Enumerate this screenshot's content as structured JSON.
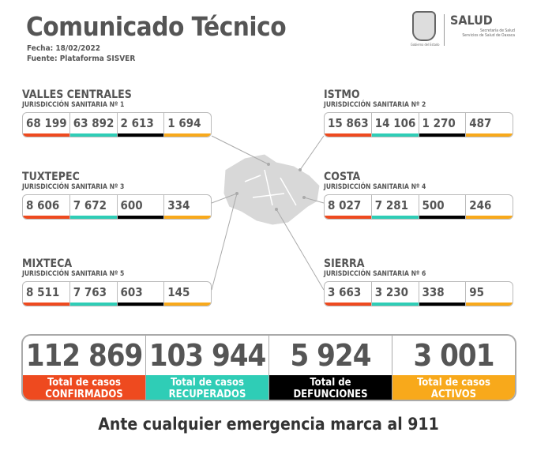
{
  "header": {
    "title": "Comunicado Técnico",
    "fecha": "Fecha: 18/02/2022",
    "fuente": "Fuente: Plataforma SISVER"
  },
  "logo": {
    "salud": "SALUD",
    "sub1": "Secretaría de Salud",
    "sub2": "Servicios de Salud de Oaxaca",
    "gob": "Gobierno del Estado"
  },
  "colors": {
    "confirmados": "#ee4a1f",
    "recuperados": "#2fcdb6",
    "defunciones": "#000000",
    "activos": "#f8a91b"
  },
  "regions": [
    {
      "name": "VALLES CENTRALES",
      "sub": "JURISDICCIÓN SANITARIA Nº 1",
      "values": [
        "68 199",
        "63 892",
        "2 613",
        "1 694"
      ]
    },
    {
      "name": "ISTMO",
      "sub": "JURISDICCIÓN SANITARIA Nº 2",
      "values": [
        "15 863",
        "14 106",
        "1 270",
        "487"
      ]
    },
    {
      "name": "TUXTEPEC",
      "sub": "JURISDICCIÓN SANITARIA Nº 3",
      "values": [
        "8 606",
        "7 672",
        "600",
        "334"
      ]
    },
    {
      "name": "COSTA",
      "sub": "JURISDICCIÓN SANITARIA Nº 4",
      "values": [
        "8 027",
        "7 281",
        "500",
        "246"
      ]
    },
    {
      "name": "MIXTECA",
      "sub": "JURISDICCIÓN SANITARIA Nº 5",
      "values": [
        "8 511",
        "7 763",
        "603",
        "145"
      ]
    },
    {
      "name": "SIERRA",
      "sub": "JURISDICCIÓN SANITARIA Nº 6",
      "values": [
        "3 663",
        "3 230",
        "338",
        "95"
      ]
    }
  ],
  "totals": [
    {
      "value": "112 869",
      "l1": "Total de casos",
      "l2": "CONFIRMADOS",
      "color": "#ee4a1f",
      "text": "#ffffff"
    },
    {
      "value": "103 944",
      "l1": "Total de casos",
      "l2": "RECUPERADOS",
      "color": "#2fcdb6",
      "text": "#ffffff"
    },
    {
      "value": "5 924",
      "l1": "Total de",
      "l2": "DEFUNCIONES",
      "color": "#000000",
      "text": "#ffffff"
    },
    {
      "value": "3 001",
      "l1": "Total de casos",
      "l2": "ACTIVOS",
      "color": "#f8a91b",
      "text": "#ffffff"
    }
  ],
  "footer": "Ante cualquier emergencia marca al 911"
}
